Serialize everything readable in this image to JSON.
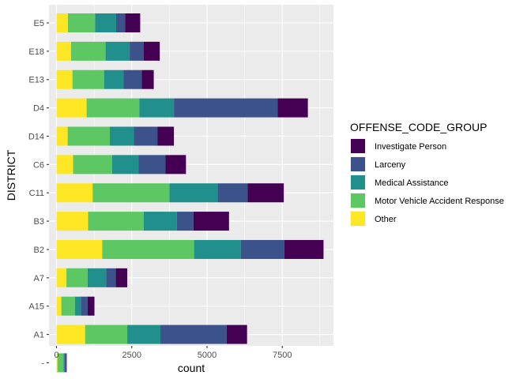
{
  "chart_data": {
    "type": "bar",
    "orientation": "horizontal",
    "stacked": true,
    "xlabel": "count",
    "ylabel": "DISTRICT",
    "xlim": [
      0,
      9200
    ],
    "xticks": [
      0,
      2500,
      5000,
      7500
    ],
    "xtick_labels": [
      "0",
      "2500",
      "5000",
      "7500"
    ],
    "categories": [
      "",
      "A1",
      "A15",
      "A7",
      "B2",
      "B3",
      "C11",
      "C6",
      "D14",
      "D4",
      "E13",
      "E18",
      "E5"
    ],
    "category_labels": [
      "-",
      "A1",
      "A15",
      "A7",
      "B2",
      "B3",
      "C11",
      "C6",
      "D14",
      "D4",
      "E13",
      "E18",
      "E5"
    ],
    "legend_title": "OFFENSE_CODE_GROUP",
    "legend_position": "right",
    "grid": true,
    "stack_order_from_zero": [
      "Other",
      "Motor Vehicle Accident Response",
      "Medical Assistance",
      "Larceny",
      "Investigate Person"
    ],
    "series": [
      {
        "name": "Investigate Person",
        "color": "#440154",
        "values": [
          10,
          680,
          230,
          380,
          1300,
          1180,
          1200,
          680,
          550,
          1000,
          400,
          530,
          500
        ]
      },
      {
        "name": "Larceny",
        "color": "#3B528B",
        "values": [
          60,
          2200,
          220,
          320,
          1450,
          550,
          1000,
          890,
          780,
          3450,
          600,
          470,
          300
        ]
      },
      {
        "name": "Medical Assistance",
        "color": "#21908C",
        "values": [
          40,
          1100,
          200,
          620,
          1550,
          1100,
          1600,
          880,
          800,
          1150,
          650,
          800,
          700
        ]
      },
      {
        "name": "Motor Vehicle Accident Response",
        "color": "#5DC863",
        "values": [
          200,
          1400,
          450,
          700,
          3050,
          1850,
          2550,
          1300,
          1400,
          1750,
          1050,
          1150,
          900
        ]
      },
      {
        "name": "Other",
        "color": "#FDE725",
        "values": [
          30,
          950,
          160,
          330,
          1520,
          1050,
          1200,
          550,
          370,
          1000,
          530,
          480,
          380
        ]
      }
    ]
  }
}
